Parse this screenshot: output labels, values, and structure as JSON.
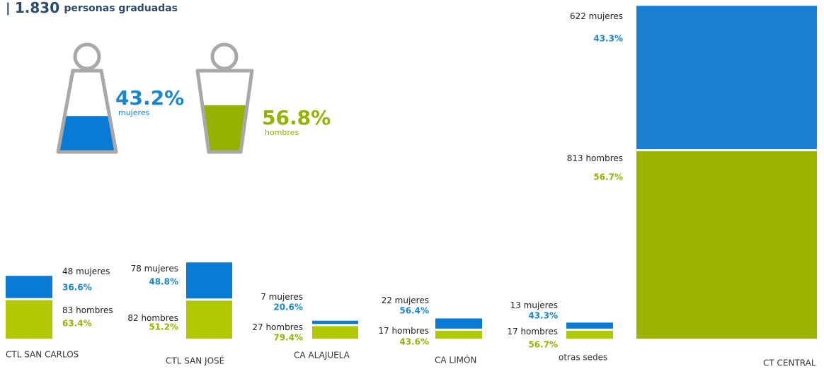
{
  "header": {
    "prefix": "|",
    "total": "1.830",
    "text": "personas graduadas"
  },
  "words": {
    "women": "mujeres",
    "men": "hombres"
  },
  "overall": {
    "women_pct": {
      "value": 43.2,
      "label": "43.2%"
    },
    "men_pct": {
      "value": 56.8,
      "label": "56.8%"
    }
  },
  "campuses": [
    {
      "name": "CTL SAN CARLOS",
      "women": 48,
      "women_pct": "36.6%",
      "men": 83,
      "men_pct": "63.4%"
    },
    {
      "name": "CTL SAN JOSÉ",
      "women": 78,
      "women_pct": "48.8%",
      "men": 82,
      "men_pct": "51.2%"
    },
    {
      "name": "CA ALAJUELA",
      "women": 7,
      "women_pct": "20.6%",
      "men": 27,
      "men_pct": "79.4%"
    },
    {
      "name": "CA LIMÓN",
      "women": 22,
      "women_pct": "56.4%",
      "men": 17,
      "men_pct": "43.6%"
    },
    {
      "name": "otras sedes",
      "women": 13,
      "women_pct": "43.3%",
      "men": 17,
      "men_pct": "56.7%"
    },
    {
      "name": "CT CENTRAL",
      "women": 622,
      "women_pct": "43.3%",
      "men": 813,
      "men_pct": "56.7%"
    }
  ]
}
